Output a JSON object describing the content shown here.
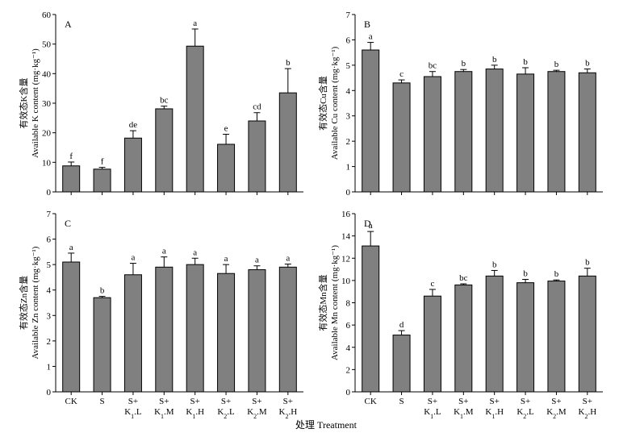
{
  "chart_data": [
    {
      "type": "bar",
      "panel_letter": "A",
      "ylabel_line1": "有效态K含量",
      "ylabel_line2": "Available K content (mg·kg⁻¹)",
      "ylim": [
        0,
        60
      ],
      "ytick_labels": [
        "0",
        "10",
        "20",
        "30",
        "40",
        "50",
        "60"
      ],
      "categories": [
        "CK",
        "S",
        "S+ K1.L",
        "S+ K1.M",
        "S+ K1.H",
        "S+ K2.L",
        "S+ K2.M",
        "S+ K2.H"
      ],
      "values": [
        8.8,
        7.7,
        18.2,
        28.1,
        49.3,
        16.1,
        24.0,
        33.5
      ],
      "errors": [
        1.3,
        0.6,
        2.5,
        0.9,
        5.8,
        3.4,
        2.8,
        8.2
      ],
      "significance": [
        "f",
        "f",
        "de",
        "bc",
        "a",
        "e",
        "cd",
        "b"
      ],
      "show_category_labels": false
    },
    {
      "type": "bar",
      "panel_letter": "B",
      "ylabel_line1": "有效态Cu含量",
      "ylabel_line2": "Available Cu content (mg·kg⁻¹)",
      "ylim": [
        0,
        7
      ],
      "ytick_labels": [
        "0",
        "1",
        "2",
        "3",
        "4",
        "5",
        "6",
        "7"
      ],
      "categories": [
        "CK",
        "S",
        "S+ K1.L",
        "S+ K1.M",
        "S+ K1.H",
        "S+ K2.L",
        "S+ K2.M",
        "S+ K2.H"
      ],
      "values": [
        5.6,
        4.3,
        4.55,
        4.75,
        4.85,
        4.65,
        4.75,
        4.7
      ],
      "errors": [
        0.3,
        0.12,
        0.2,
        0.08,
        0.15,
        0.25,
        0.05,
        0.15
      ],
      "significance": [
        "a",
        "c",
        "bc",
        "b",
        "b",
        "b",
        "b",
        "b"
      ],
      "show_category_labels": false
    },
    {
      "type": "bar",
      "panel_letter": "C",
      "ylabel_line1": "有效态Zn含量",
      "ylabel_line2": "Available Zn content (mg·kg⁻¹)",
      "ylim": [
        0,
        7
      ],
      "ytick_labels": [
        "0",
        "1",
        "2",
        "3",
        "4",
        "5",
        "6",
        "7"
      ],
      "categories": [
        "CK",
        "S",
        "S+ K1.L",
        "S+ K1.M",
        "S+ K1.H",
        "S+ K2.L",
        "S+ K2.M",
        "S+ K2.H"
      ],
      "values": [
        5.1,
        3.7,
        4.6,
        4.9,
        5.0,
        4.65,
        4.8,
        4.9
      ],
      "errors": [
        0.35,
        0.05,
        0.45,
        0.4,
        0.25,
        0.35,
        0.15,
        0.12
      ],
      "significance": [
        "a",
        "b",
        "a",
        "a",
        "a",
        "a",
        "a",
        "a"
      ],
      "show_category_labels": true
    },
    {
      "type": "bar",
      "panel_letter": "D",
      "ylabel_line1": "有效态Mn含量",
      "ylabel_line2": "Available Mn content (mg·kg⁻¹)",
      "ylim": [
        0,
        16
      ],
      "ytick_labels": [
        "0",
        "2",
        "4",
        "6",
        "8",
        "10",
        "12",
        "14",
        "16"
      ],
      "categories": [
        "CK",
        "S",
        "S+ K1.L",
        "S+ K1.M",
        "S+ K1.H",
        "S+ K2.L",
        "S+ K2.M",
        "S+ K2.H"
      ],
      "values": [
        13.1,
        5.1,
        8.6,
        9.6,
        10.4,
        9.8,
        9.95,
        10.4
      ],
      "errors": [
        1.3,
        0.4,
        0.6,
        0.1,
        0.5,
        0.3,
        0.1,
        0.7
      ],
      "significance": [
        "a",
        "d",
        "c",
        "bc",
        "b",
        "b",
        "b",
        "b"
      ],
      "show_category_labels": true
    }
  ],
  "x_axis_title": "处理 Treatment",
  "category_lines": [
    {
      "top": "CK",
      "sub_pre": "",
      "sub": "",
      "sub_post": ""
    },
    {
      "top": "S",
      "sub_pre": "",
      "sub": "",
      "sub_post": ""
    },
    {
      "top": "S+",
      "sub_pre": "K",
      "sub": "1",
      "sub_post": ".L"
    },
    {
      "top": "S+",
      "sub_pre": "K",
      "sub": "1",
      "sub_post": ".M"
    },
    {
      "top": "S+",
      "sub_pre": "K",
      "sub": "1",
      "sub_post": ".H"
    },
    {
      "top": "S+",
      "sub_pre": "K",
      "sub": "2",
      "sub_post": ".L"
    },
    {
      "top": "S+",
      "sub_pre": "K",
      "sub": "2",
      "sub_post": ".M"
    },
    {
      "top": "S+",
      "sub_pre": "K",
      "sub": "2",
      "sub_post": ".H"
    }
  ],
  "colors": {
    "bar_fill": "#808080",
    "bar_stroke": "#000000",
    "axis": "#000000",
    "background": "#ffffff"
  }
}
